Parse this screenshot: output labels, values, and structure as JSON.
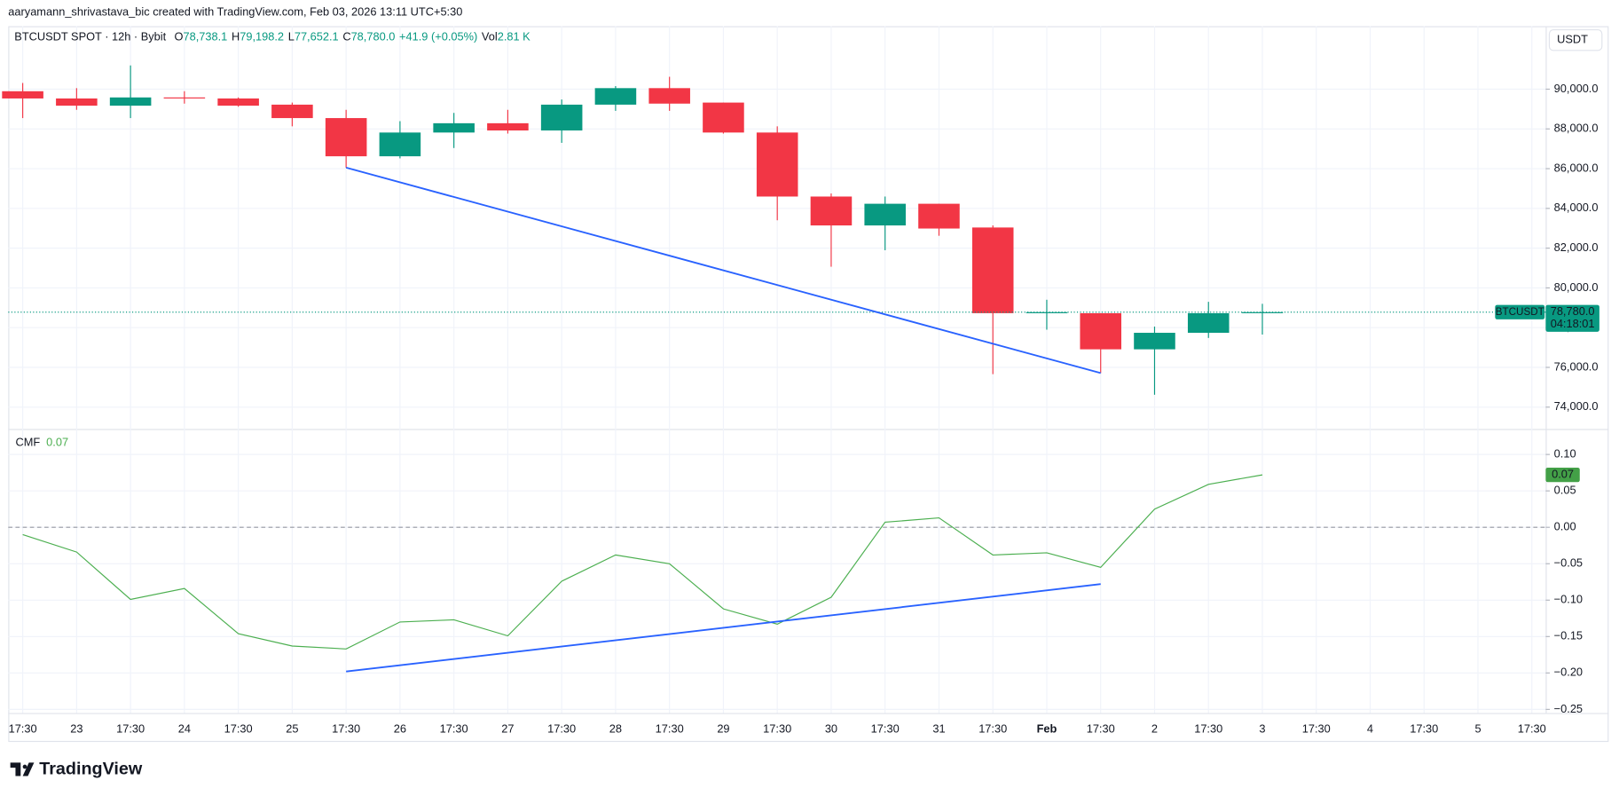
{
  "header": {
    "attribution": "aaryamann_shrivastava_bic created with TradingView.com, Feb 03, 2026 13:11 UTC+5:30",
    "currency_button": "USDT"
  },
  "chart_data": [
    {
      "type": "candlestick",
      "title": "BTCUSDT SPOT · 12h · Bybit",
      "legend": [
        {
          "key": "O",
          "text": "78,738.1"
        },
        {
          "key": "H",
          "text": "79,198.2"
        },
        {
          "key": "L",
          "text": "77,652.1"
        },
        {
          "key": "C",
          "text": "78,780.0"
        },
        {
          "key": "+41.9 (+0.05%)"
        },
        {
          "key": "Vol",
          "text": "2.81 K"
        }
      ],
      "categories": [
        "17:30",
        "23",
        "17:30",
        "24",
        "17:30",
        "25",
        "17:30",
        "26",
        "17:30",
        "27",
        "17:30",
        "28",
        "17:30",
        "29",
        "17:30",
        "30",
        "17:30",
        "31",
        "17:30",
        "Feb",
        "17:30",
        "2",
        "17:30",
        "3",
        "17:30",
        "4",
        "17:30",
        "5",
        "17:30"
      ],
      "open": [
        89896,
        89532,
        89169,
        89584,
        89532,
        89221,
        88545,
        86623,
        87818,
        88286,
        87922,
        89221,
        90052,
        89325,
        87818,
        84597,
        83143,
        84234,
        83039,
        78727,
        78727,
        76909,
        77740,
        78738.1,
        null,
        null,
        null,
        null,
        null
      ],
      "high": [
        90312,
        90052,
        91195,
        89896,
        89584,
        89325,
        88961,
        88390,
        88805,
        88961,
        89481,
        90156,
        90623,
        89325,
        88130,
        84753,
        84597,
        84234,
        83143,
        79403,
        78727,
        78052,
        79299,
        79198.2,
        null,
        null,
        null,
        null,
        null
      ],
      "low": [
        88545,
        88961,
        88545,
        89273,
        89117,
        88130,
        86052,
        86519,
        87039,
        87766,
        87299,
        88909,
        88909,
        87766,
        83403,
        81065,
        81896,
        82623,
        75662,
        77896,
        75714,
        74623,
        77481,
        77652.1,
        null,
        null,
        null,
        null,
        null
      ],
      "close": [
        89532,
        89169,
        89584,
        89532,
        89169,
        88545,
        86623,
        87818,
        88286,
        87922,
        89221,
        90052,
        89273,
        87818,
        84597,
        83143,
        84234,
        82987,
        78727,
        78780,
        76909,
        77740,
        78727,
        78780.0,
        null,
        null,
        null,
        null,
        null
      ],
      "up_color": "#089981",
      "down_color": "#f23645",
      "ylim": [
        72900,
        93170
      ],
      "yticks": [
        {
          "value": 74000,
          "label": "74,000.0"
        },
        {
          "value": 76000,
          "label": "76,000.0"
        },
        {
          "value": 78000,
          "label": "78,000.0"
        },
        {
          "value": 80000,
          "label": "80,000.0"
        },
        {
          "value": 82000,
          "label": "82,000.0"
        },
        {
          "value": 84000,
          "label": "84,000.0"
        },
        {
          "value": 86000,
          "label": "86,000.0"
        },
        {
          "value": 88000,
          "label": "88,000.0"
        },
        {
          "value": 90000,
          "label": "90,000.0"
        }
      ],
      "grid": true,
      "last_price": {
        "symbol": "BTCUSDT",
        "value": 78780.0,
        "label": "78,780.0",
        "countdown": "04:18:01",
        "color": "#089981"
      },
      "trendline": {
        "points": [
          [
            6,
            86052
          ],
          [
            20,
            75714
          ]
        ],
        "color": "#2962ff"
      }
    },
    {
      "type": "line",
      "title": "CMF",
      "color": "#4caf50",
      "last_value_label": "0.07",
      "values": [
        -0.01,
        -0.034,
        -0.099,
        -0.084,
        -0.146,
        -0.163,
        -0.167,
        -0.13,
        -0.127,
        -0.149,
        -0.074,
        -0.038,
        -0.05,
        -0.112,
        -0.133,
        -0.096,
        0.007,
        0.013,
        -0.038,
        -0.035,
        -0.055,
        0.025,
        0.059,
        0.072,
        null,
        null,
        null,
        null,
        null
      ],
      "ylim": [
        -0.255,
        0.135
      ],
      "yticks": [
        {
          "value": -0.25,
          "label": "−0.25"
        },
        {
          "value": -0.2,
          "label": "−0.20"
        },
        {
          "value": -0.15,
          "label": "−0.15"
        },
        {
          "value": -0.1,
          "label": "−0.10"
        },
        {
          "value": -0.05,
          "label": "−0.05"
        },
        {
          "value": 0,
          "label": "0.00"
        },
        {
          "value": 0.05,
          "label": "0.05"
        },
        {
          "value": 0.1,
          "label": "0.10"
        }
      ],
      "grid": true,
      "zero_line": 0,
      "trendline": {
        "points": [
          [
            6,
            -0.198
          ],
          [
            20,
            -0.078
          ]
        ],
        "color": "#2962ff"
      }
    }
  ],
  "footer": {
    "logo": "TradingView"
  }
}
